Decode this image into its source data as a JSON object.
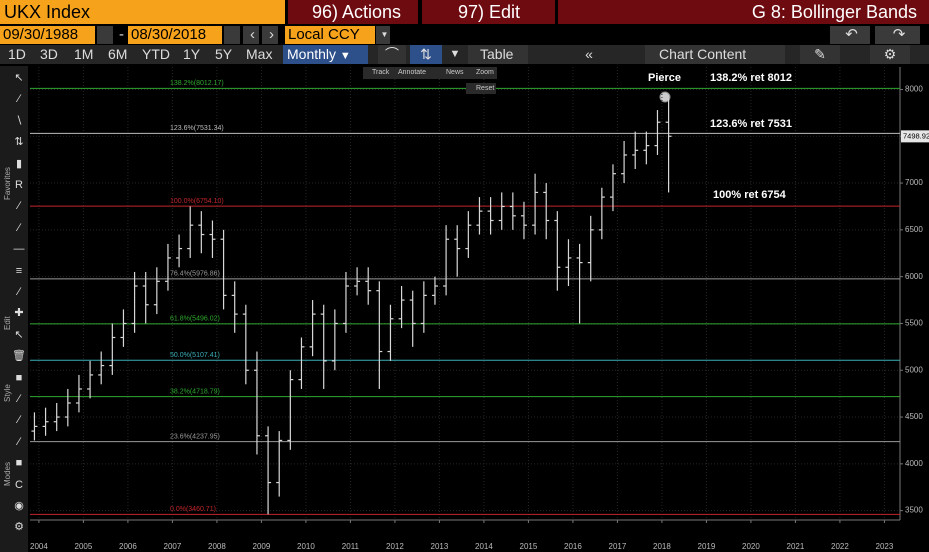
{
  "header": {
    "security": "UKX Index",
    "actions": "96) Actions",
    "edit": "97) Edit",
    "function": "G 8: Bollinger Bands"
  },
  "dates": {
    "start": "09/30/1988",
    "separator": "-",
    "end": "08/30/2018",
    "currency": "Local CCY"
  },
  "toolbar": {
    "periods": [
      "1D",
      "3D",
      "1M",
      "6M",
      "YTD",
      "1Y",
      "5Y",
      "Max"
    ],
    "frequency": "Monthly",
    "table": "Table",
    "chart_content": "Chart Content"
  },
  "chart_tools": {
    "items": [
      "Track",
      "Annotate",
      "News",
      "Zoom"
    ],
    "reset": "Reset"
  },
  "side_labels": [
    "Favorites",
    "Edit",
    "Style",
    "Modes"
  ],
  "chart_data": {
    "type": "ohlc",
    "color": "#d8d8d8",
    "x": [
      2003.9,
      2004.15,
      2004.4,
      2004.65,
      2004.9,
      2005.15,
      2005.4,
      2005.65,
      2005.9,
      2006.15,
      2006.4,
      2006.65,
      2006.9,
      2007.15,
      2007.4,
      2007.65,
      2007.9,
      2008.15,
      2008.4,
      2008.65,
      2008.9,
      2009.15,
      2009.4,
      2009.65,
      2009.9,
      2010.15,
      2010.4,
      2010.65,
      2010.9,
      2011.15,
      2011.4,
      2011.65,
      2011.9,
      2012.15,
      2012.4,
      2012.65,
      2012.9,
      2013.15,
      2013.4,
      2013.65,
      2013.9,
      2014.15,
      2014.4,
      2014.65,
      2014.9,
      2015.15,
      2015.4,
      2015.65,
      2015.9,
      2016.15,
      2016.4,
      2016.65,
      2016.9,
      2017.15,
      2017.4,
      2017.65,
      2017.9,
      2018.15
    ],
    "open": [
      4350,
      4400,
      4450,
      4500,
      4650,
      4800,
      4950,
      5050,
      5350,
      5500,
      5900,
      5700,
      5950,
      6200,
      6300,
      6550,
      6450,
      6400,
      5800,
      5600,
      5000,
      4300,
      3800,
      4250,
      4900,
      5250,
      5600,
      5100,
      5500,
      5900,
      5950,
      5850,
      5200,
      5550,
      5750,
      5500,
      5800,
      5900,
      6400,
      6300,
      6550,
      6700,
      6600,
      6750,
      6650,
      6550,
      6900,
      6600,
      6100,
      6200,
      6150,
      6500,
      6850,
      7100,
      7300,
      7350,
      7400,
      7650
    ],
    "high": [
      4550,
      4600,
      4650,
      4800,
      4950,
      5100,
      5200,
      5500,
      5650,
      6050,
      6050,
      6100,
      6350,
      6450,
      6750,
      6700,
      6600,
      6500,
      5950,
      5700,
      5200,
      4400,
      4350,
      5000,
      5350,
      5750,
      5700,
      5650,
      6050,
      6100,
      6100,
      5950,
      5700,
      5900,
      5850,
      5950,
      6000,
      6550,
      6550,
      6700,
      6850,
      6850,
      6900,
      6900,
      6800,
      7100,
      7000,
      6700,
      6400,
      6350,
      6650,
      6950,
      7200,
      7450,
      7550,
      7550,
      7780,
      7900
    ],
    "low": [
      4250,
      4300,
      4350,
      4400,
      4550,
      4700,
      4850,
      4950,
      5250,
      5400,
      5500,
      5600,
      5850,
      6100,
      6200,
      6250,
      6200,
      5650,
      5400,
      4850,
      4100,
      3460,
      3650,
      4150,
      4800,
      5150,
      4800,
      5000,
      5400,
      5800,
      5700,
      4800,
      5100,
      5450,
      5250,
      5400,
      5700,
      5800,
      6000,
      6200,
      6450,
      6450,
      6500,
      6500,
      6400,
      6450,
      6400,
      5850,
      5900,
      5500,
      5950,
      6400,
      6700,
      7000,
      7150,
      7200,
      7300,
      6900
    ],
    "close": [
      4400,
      4450,
      4500,
      4650,
      4800,
      4950,
      5050,
      5350,
      5500,
      5900,
      5700,
      5950,
      6200,
      6300,
      6550,
      6450,
      6400,
      5800,
      5600,
      5000,
      4300,
      3800,
      4250,
      4900,
      5250,
      5600,
      5100,
      5500,
      5900,
      5950,
      5850,
      5200,
      5550,
      5750,
      5500,
      5800,
      5900,
      6400,
      6300,
      6550,
      6700,
      6600,
      6750,
      6650,
      6550,
      6900,
      6600,
      6100,
      6200,
      6150,
      6500,
      6850,
      7100,
      7300,
      7350,
      7400,
      7650,
      7500
    ],
    "xlim": [
      2003.8,
      2023.35
    ],
    "ylim": [
      3400,
      8240
    ],
    "xticks": [
      2004,
      2005,
      2006,
      2007,
      2008,
      2009,
      2010,
      2011,
      2012,
      2013,
      2014,
      2015,
      2016,
      2017,
      2018,
      2019,
      2020,
      2021,
      2022,
      2023
    ],
    "yticks": [
      3500,
      4000,
      4500,
      5000,
      5500,
      6000,
      6500,
      7000,
      7500,
      8000
    ],
    "grid": true,
    "levels": [
      {
        "value": 8012.17,
        "label": "138.2%(8012.17)",
        "color": "#2fa82f"
      },
      {
        "value": 7531.34,
        "label": "123.6%(7531.34)",
        "color": "#bdbdbd"
      },
      {
        "value": 6754.1,
        "label": "100.0%(6754.10)",
        "color": "#c0262b"
      },
      {
        "value": 5976.86,
        "label": "76.4%(5976.86)",
        "color": "#9a9a9a"
      },
      {
        "value": 5496.02,
        "label": "61.8%(5496.02)",
        "color": "#2fa82f"
      },
      {
        "value": 5107.41,
        "label": "50.0%(5107.41)",
        "color": "#3aaeb5"
      },
      {
        "value": 4718.79,
        "label": "38.2%(4718.79)",
        "color": "#2fa82f"
      },
      {
        "value": 4237.95,
        "label": "23.6%(4237.95)",
        "color": "#9a9a9a"
      },
      {
        "value": 3460.71,
        "label": "0.0%(3460.71)",
        "color": "#c0262b"
      }
    ],
    "annotations": [
      "Pierce",
      "138.2% ret 8012",
      "123.6% ret 7531",
      "100% ret 6754"
    ],
    "last_price": 7498.92
  }
}
